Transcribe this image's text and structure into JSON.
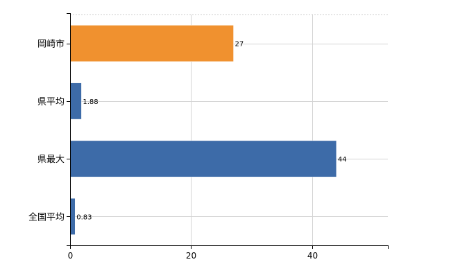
{
  "chart_data": {
    "type": "bar",
    "orientation": "horizontal",
    "categories": [
      "岡崎市",
      "県平均",
      "県最大",
      "全国平均"
    ],
    "values": [
      27,
      1.88,
      44,
      0.83
    ],
    "value_labels": [
      "27",
      "1.88",
      "44",
      "0.83"
    ],
    "bar_colors": [
      "#f0912f",
      "#3d6ba8",
      "#3d6ba8",
      "#3d6ba8"
    ],
    "title": "",
    "xlabel": "",
    "ylabel": "",
    "xlim": [
      0,
      52.5
    ],
    "x_ticks": [
      0,
      20,
      40
    ],
    "x_tick_labels": [
      "0",
      "20",
      "40"
    ],
    "grid": true,
    "legend": "none"
  }
}
